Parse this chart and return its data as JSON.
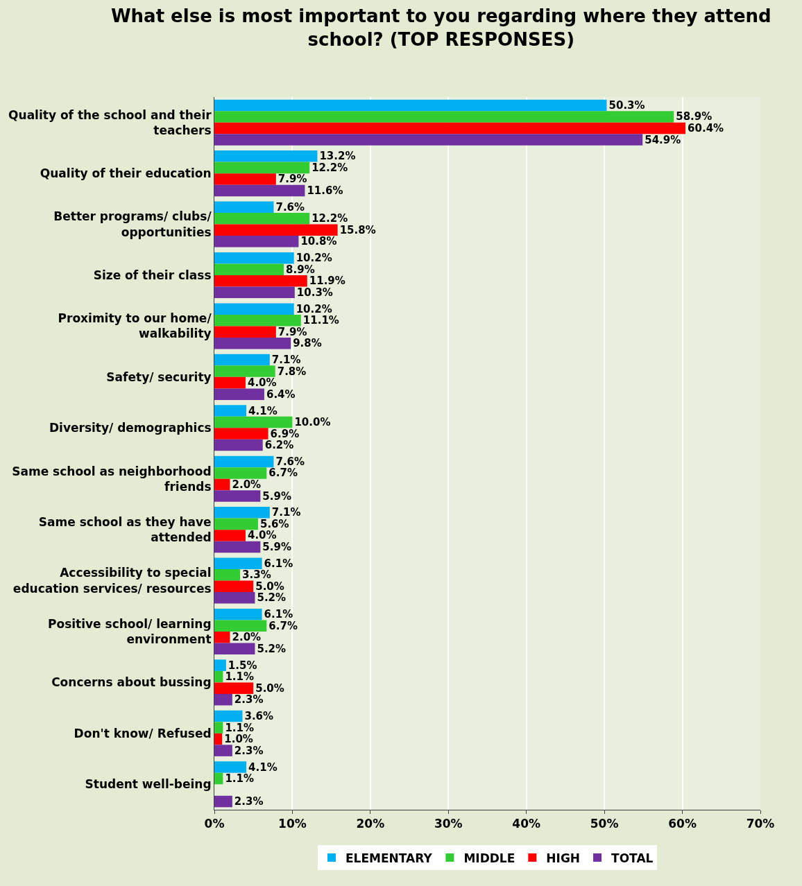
{
  "chart_data": {
    "type": "bar",
    "orientation": "horizontal",
    "title": "What else is most important to you regarding where they attend school? (TOP RESPONSES)",
    "categories": [
      "Quality of the school and their teachers",
      "Quality of their education",
      "Better programs/ clubs/ opportunities",
      "Size of their class",
      "Proximity to our home/ walkability",
      "Safety/ security",
      "Diversity/ demographics",
      "Same school as neighborhood friends",
      "Same school as they have attended",
      "Accessibility to special education services/ resources",
      "Positive school/ learning environment",
      "Concerns about bussing",
      "Don't know/ Refused",
      "Student well-being"
    ],
    "series": [
      {
        "name": "ELEMENTARY",
        "color": "#00b0f0",
        "values": [
          50.3,
          13.2,
          7.6,
          10.2,
          10.2,
          7.1,
          4.1,
          7.6,
          7.1,
          6.1,
          6.1,
          1.5,
          3.6,
          4.1
        ],
        "value_labels": [
          "50.3%",
          "13.2%",
          "7.6%",
          "10.2%",
          "10.2%",
          "7.1%",
          "4.1%",
          "7.6%",
          "7.1%",
          "6.1%",
          "6.1%",
          "1.5%",
          "3.6%",
          "4.1%"
        ]
      },
      {
        "name": "MIDDLE",
        "color": "#33cc33",
        "values": [
          58.9,
          12.2,
          12.2,
          8.9,
          11.1,
          7.8,
          10.0,
          6.7,
          5.6,
          3.3,
          6.7,
          1.1,
          1.1,
          1.1
        ],
        "value_labels": [
          "58.9%",
          "12.2%",
          "12.2%",
          "8.9%",
          "11.1%",
          "7.8%",
          "10.0%",
          "6.7%",
          "5.6%",
          "3.3%",
          "6.7%",
          "1.1%",
          "1.1%",
          "1.1%"
        ]
      },
      {
        "name": "HIGH",
        "color": "#ff0000",
        "values": [
          60.4,
          7.9,
          15.8,
          11.9,
          7.9,
          4.0,
          6.9,
          2.0,
          4.0,
          5.0,
          2.0,
          5.0,
          1.0,
          null
        ],
        "value_labels": [
          "60.4%",
          "7.9%",
          "15.8%",
          "11.9%",
          "7.9%",
          "4.0%",
          "6.9%",
          "2.0%",
          "4.0%",
          "5.0%",
          "2.0%",
          "5.0%",
          "1.0%",
          null
        ]
      },
      {
        "name": "TOTAL",
        "color": "#7030a0",
        "values": [
          54.9,
          11.6,
          10.8,
          10.3,
          9.8,
          6.4,
          6.2,
          5.9,
          5.9,
          5.2,
          5.2,
          2.3,
          2.3,
          2.3
        ],
        "value_labels": [
          "54.9%",
          "11.6%",
          "10.8%",
          "10.3%",
          "9.8%",
          "6.4%",
          "6.2%",
          "5.9%",
          "5.9%",
          "5.2%",
          "5.2%",
          "2.3%",
          "2.3%",
          "2.3%"
        ]
      }
    ],
    "xlim": [
      0,
      70
    ],
    "xticks": [
      {
        "value": 0,
        "label": "0%"
      },
      {
        "value": 10,
        "label": "10%"
      },
      {
        "value": 20,
        "label": "20%"
      },
      {
        "value": 30,
        "label": "30%"
      },
      {
        "value": 40,
        "label": "40%"
      },
      {
        "value": 50,
        "label": "50%"
      },
      {
        "value": 60,
        "label": "60%"
      },
      {
        "value": 70,
        "label": "70%"
      }
    ],
    "grid": "x",
    "legend": "bottom"
  }
}
